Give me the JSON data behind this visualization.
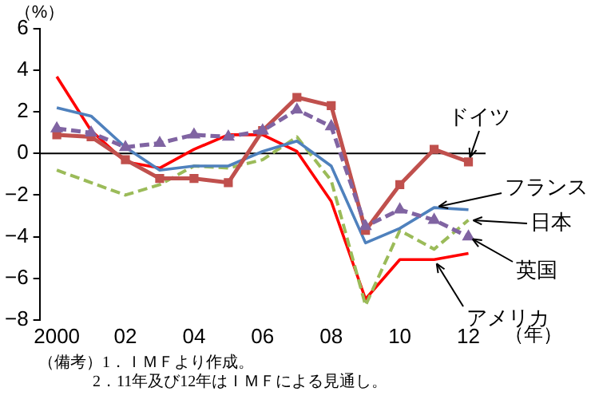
{
  "chart_data": {
    "type": "line",
    "ylabel": "（%）",
    "xlabel": "（年）",
    "x": [
      2000,
      2001,
      2002,
      2003,
      2004,
      2005,
      2006,
      2007,
      2008,
      2009,
      2010,
      2011,
      2012
    ],
    "xlim": [
      1999.5,
      2012.5
    ],
    "xticks": [
      {
        "value": 2000,
        "label": "2000"
      },
      {
        "value": 2002,
        "label": "02"
      },
      {
        "value": 2004,
        "label": "04"
      },
      {
        "value": 2006,
        "label": "06"
      },
      {
        "value": 2008,
        "label": "08"
      },
      {
        "value": 2010,
        "label": "10"
      },
      {
        "value": 2012,
        "label": "12"
      }
    ],
    "ylim": [
      -8,
      6
    ],
    "yticks": [
      -8,
      -6,
      -4,
      -2,
      0,
      2,
      4,
      6
    ],
    "grid": false,
    "legend": false,
    "ref_lines": [
      {
        "axis": "y",
        "value": 0,
        "color": "#000000"
      }
    ],
    "series": [
      {
        "name": "ドイツ",
        "color": "#c0504d",
        "marker": "square",
        "line_style": "solid",
        "values": [
          0.9,
          0.8,
          -0.3,
          -1.2,
          -1.2,
          -1.4,
          1.1,
          2.7,
          2.3,
          -3.7,
          -1.5,
          0.2,
          -0.4
        ]
      },
      {
        "name": "フランス",
        "color": "#4f81bd",
        "marker": "none",
        "line_style": "solid",
        "values": [
          2.2,
          1.8,
          0.3,
          -0.8,
          -0.6,
          -0.6,
          0.1,
          0.6,
          -0.6,
          -4.3,
          -3.6,
          -2.6,
          -2.7
        ]
      },
      {
        "name": "日本",
        "color": "#9bbb59",
        "marker": "none",
        "line_style": "dashed",
        "values": [
          -0.8,
          -1.4,
          -2.0,
          -1.5,
          -0.6,
          -0.7,
          -0.3,
          0.8,
          -1.3,
          -7.3,
          -3.7,
          -4.6,
          -3.2
        ]
      },
      {
        "name": "英国",
        "color": "#8064a2",
        "marker": "triangle",
        "line_style": "dashed",
        "values": [
          1.2,
          1.0,
          0.3,
          0.5,
          0.9,
          0.8,
          1.1,
          2.1,
          1.3,
          -3.5,
          -2.7,
          -3.2,
          -4.0
        ]
      },
      {
        "name": "アメリカ",
        "color": "#ff0000",
        "marker": "none",
        "line_style": "solid",
        "values": [
          3.7,
          1.1,
          -0.4,
          -0.7,
          0.2,
          0.9,
          0.9,
          0.1,
          -2.3,
          -7.0,
          -5.1,
          -5.1,
          -4.8
        ]
      }
    ],
    "annotations": [
      "（備考）1．ＩＭＦより作成。",
      "2．11年及び12年はＩＭＦによる見通し。"
    ]
  }
}
